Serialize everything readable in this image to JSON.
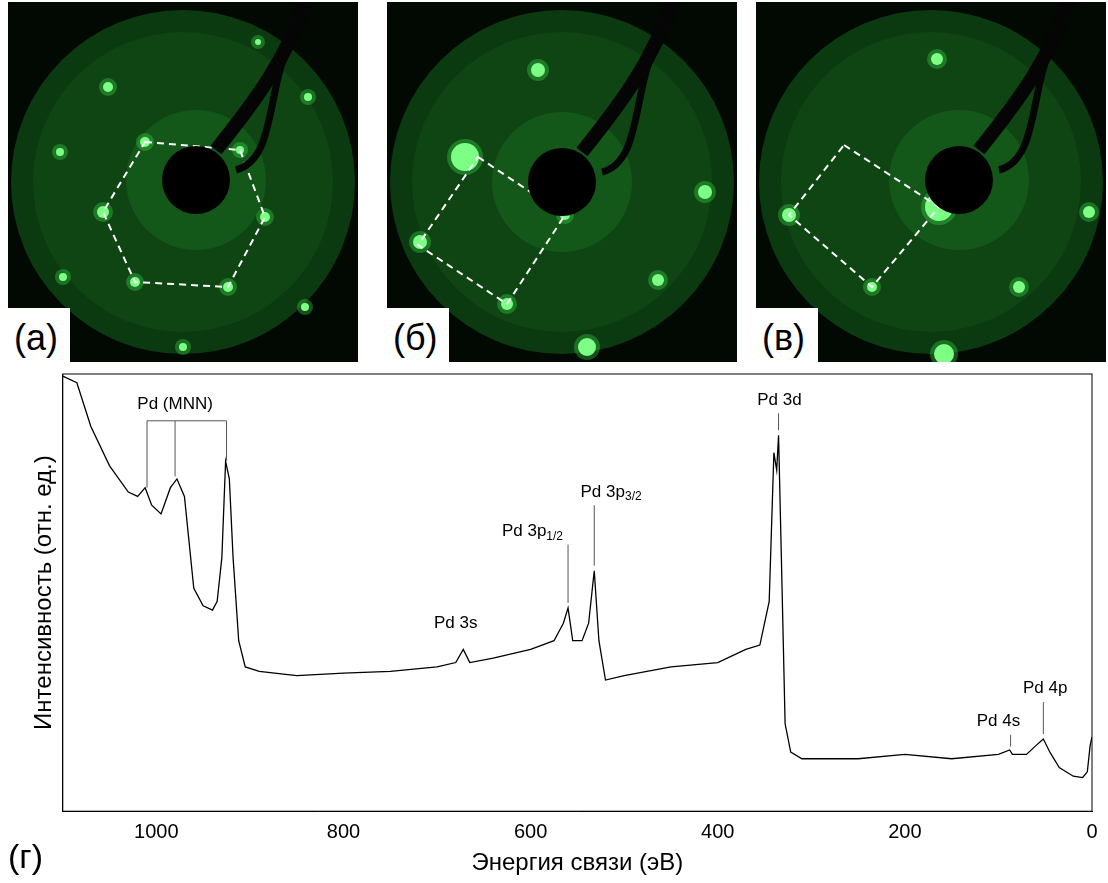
{
  "panels": [
    {
      "label": "(а)"
    },
    {
      "label": "(б)"
    },
    {
      "label": "(в)"
    }
  ],
  "chart_data": {
    "label": "(г)",
    "type": "line",
    "x_label": "Энергия связи (эВ)",
    "y_label": "Интенсивность (отн. ед.)",
    "x": [
      1100,
      1085,
      1070,
      1050,
      1030,
      1020,
      1012,
      1005,
      995,
      985,
      978,
      970,
      960,
      950,
      940,
      935,
      930,
      926,
      922,
      918,
      912,
      905,
      890,
      850,
      800,
      750,
      700,
      680,
      672,
      665,
      640,
      600,
      575,
      565,
      560,
      555,
      545,
      538,
      532,
      527,
      520,
      500,
      450,
      400,
      370,
      355,
      345,
      340,
      337,
      335,
      332,
      328,
      322,
      310,
      250,
      200,
      150,
      100,
      88,
      85,
      70,
      60,
      52,
      45,
      35,
      20,
      10,
      5,
      2,
      0
    ],
    "values": [
      99.5,
      98,
      88,
      79,
      73,
      72,
      74,
      70,
      68,
      74,
      76,
      72,
      51,
      47,
      46,
      48,
      58,
      80,
      76,
      58,
      39,
      33,
      32,
      31,
      31.6,
      32,
      33,
      34,
      37,
      34,
      35,
      37,
      39,
      43,
      46.5,
      39,
      39,
      43,
      55,
      39,
      30,
      31,
      33,
      34,
      37,
      38,
      48,
      82,
      78,
      86,
      58,
      20,
      13.5,
      12,
      12,
      13,
      12,
      13,
      14,
      13,
      13,
      15,
      16.5,
      13.5,
      10,
      8,
      7.7,
      9,
      15,
      17
    ],
    "color": "#000000",
    "xlim": [
      1100,
      0
    ],
    "xticks": [
      1000,
      800,
      600,
      400,
      200,
      0
    ],
    "ylim": [
      0,
      100
    ],
    "grid": false,
    "tick_labels": "x",
    "annotations": [
      {
        "text": "Pd (MNN)",
        "x": 980,
        "y": 93,
        "points": [
          1010,
          980,
          925
        ]
      },
      {
        "text": "Pd 3s",
        "x": 680,
        "y": 43
      },
      {
        "text": "Pd 3p1/2",
        "x": 598,
        "y": 64,
        "points": [
          560
        ]
      },
      {
        "text": "Pd 3p3/2",
        "x": 514,
        "y": 73,
        "points": [
          532
        ]
      },
      {
        "text": "Pd 3d",
        "x": 334,
        "y": 94,
        "points": [
          335
        ]
      },
      {
        "text": "Pd 4s",
        "x": 100,
        "y": 20.5,
        "points": [
          87
        ]
      },
      {
        "text": "Pd 4p",
        "x": 50,
        "y": 28,
        "points": [
          52
        ]
      }
    ]
  }
}
